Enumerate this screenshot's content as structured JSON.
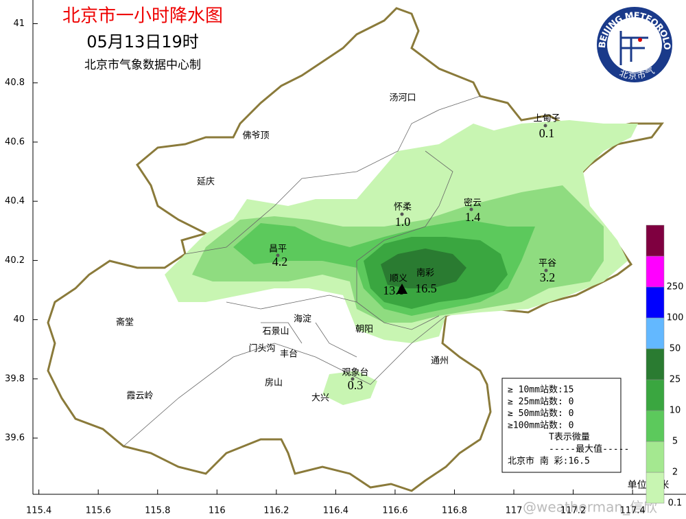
{
  "title": "北京市一小时降水图",
  "time": "05月13日19时",
  "source": "北京市气象数据中心制",
  "logo": {
    "text_en": "BEIJING METEOROLOGICAL SERVICE",
    "text_cn": "北京市气象局"
  },
  "axes": {
    "xlim": [
      115.38,
      117.58
    ],
    "ylim": [
      39.41,
      41.08
    ],
    "xticks": [
      115.4,
      115.6,
      115.8,
      116,
      116.2,
      116.4,
      116.6,
      116.8,
      117,
      117.2,
      117.4
    ],
    "yticks": [
      39.6,
      39.8,
      40,
      40.2,
      40.4,
      40.6,
      40.8,
      41
    ]
  },
  "stations": [
    {
      "name": "上甸子",
      "value": 0.1
    },
    {
      "name": "怀柔",
      "value": {
        "value": 1,
        "label": "1.0"
      }
    },
    {
      "name": "密云",
      "value": 1.4
    },
    {
      "name": "昌平",
      "value": 4.2
    },
    {
      "name": "平谷",
      "value": 3.2
    },
    {
      "name": "顺义",
      "value": {
        "value": 13,
        "label": "13.0"
      }
    },
    {
      "name": "南彩",
      "value": 16.5
    },
    {
      "name": "观象台",
      "value": 0.3
    }
  ],
  "places": [
    "汤河口",
    "佛爷顶",
    "延庆",
    "海淀",
    "朝阳",
    "石景山",
    "门头沟",
    "丰台",
    "通州",
    "房山",
    "大兴",
    "斋堂",
    "霞云岭"
  ],
  "summary": [
    "≥ 10mm站数:15",
    "≥ 25mm站数: 0",
    "≥ 50mm站数: 0",
    "≥100mm站数: 0",
    "T表示微量",
    "-----最大值-----",
    "北京市 南  彩:16.5"
  ],
  "scale": {
    "levels": [
      0.1,
      2,
      5,
      10,
      25,
      50,
      100,
      250
    ],
    "colors": [
      "#c8f5b2",
      "#a4e890",
      "#5cc95c",
      "#3aa640",
      "#2a7b31",
      "#63b8ff",
      "#0000fe",
      "#ff00ff",
      "#7f0040"
    ]
  },
  "unit": "单位:毫米",
  "watermark": "@weatherman_信欣"
}
